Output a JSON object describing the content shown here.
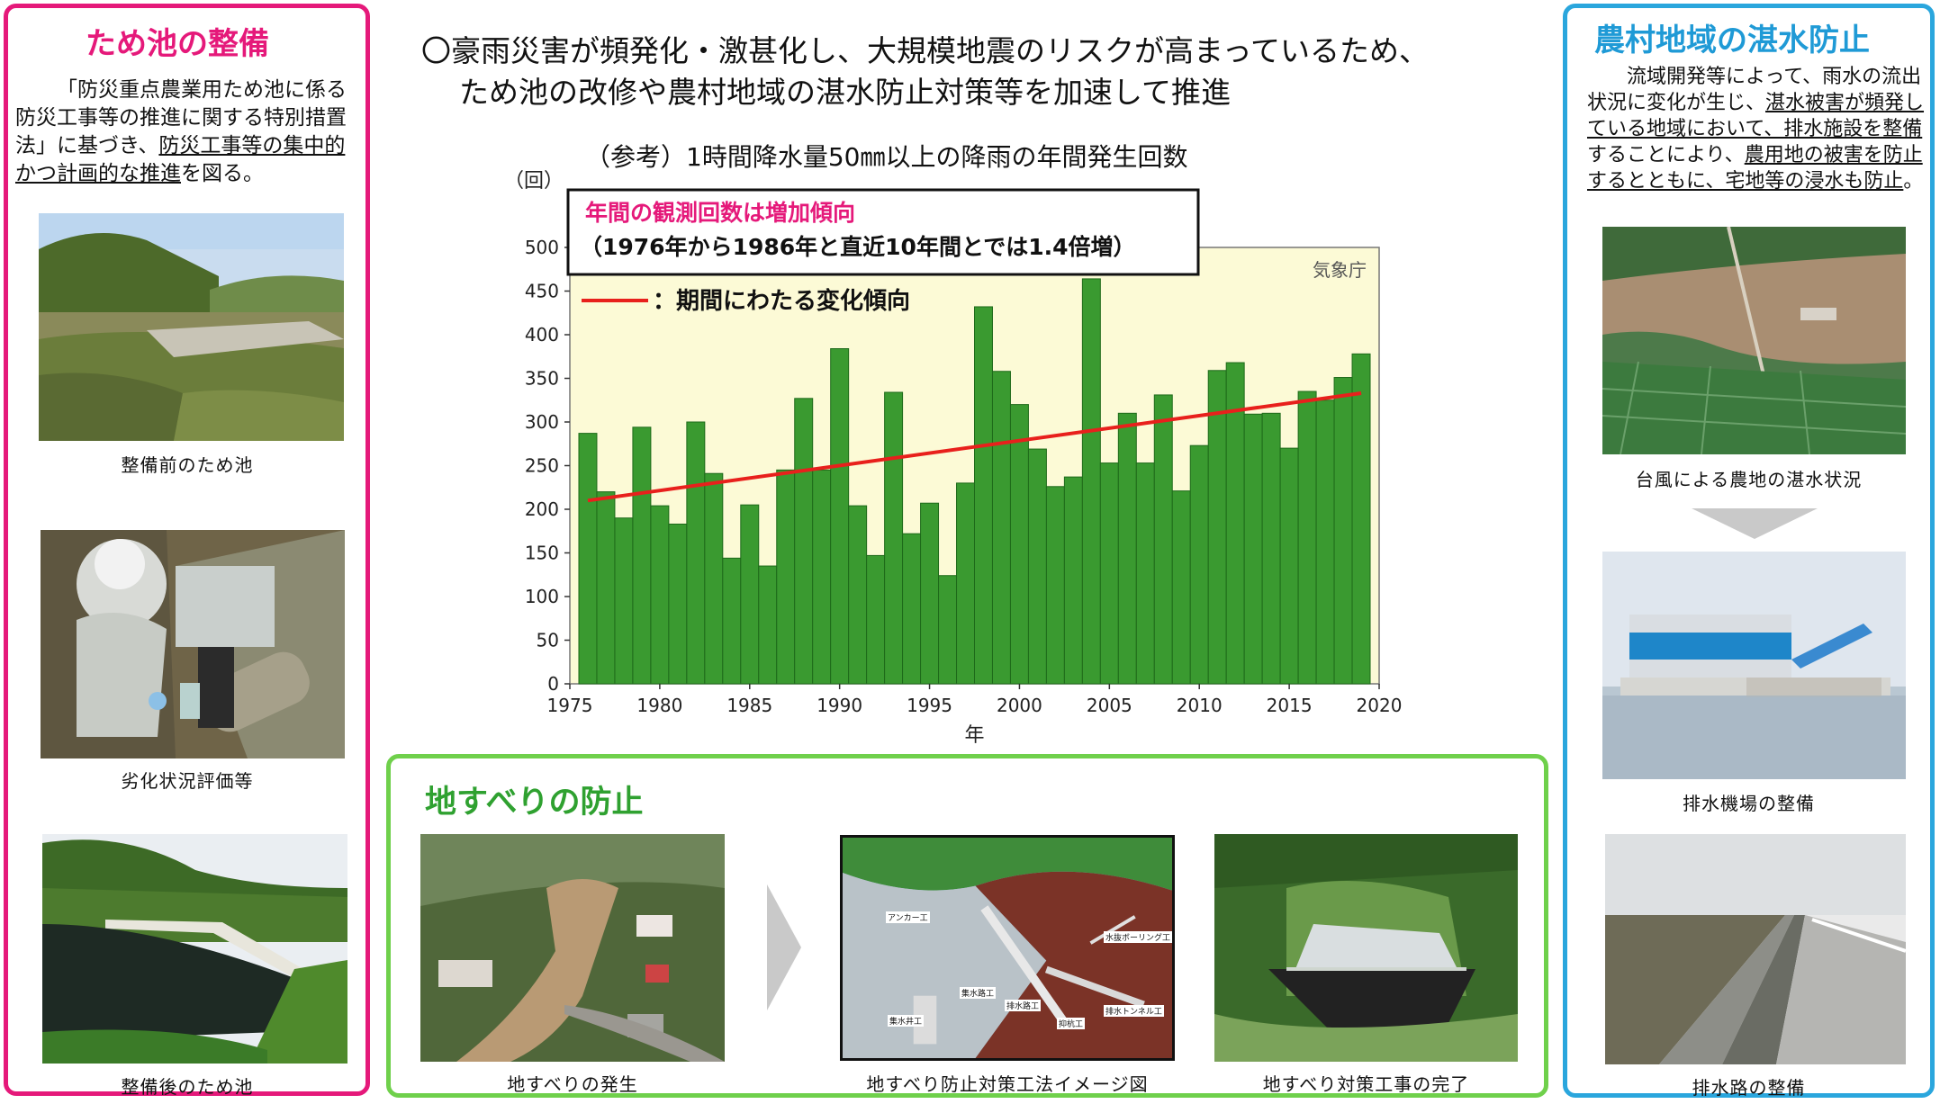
{
  "left_panel": {
    "title": "ため池の整備",
    "body": {
      "t1": "「防災重点農業用ため池に係る防災工事等の推進に関する特別措置法」に基づき、",
      "t2": "防災工事等の集中的かつ計画的な推進",
      "t3": "を図る。"
    },
    "captions": [
      "整備前のため池",
      "劣化状況評価等",
      "整備後のため池"
    ]
  },
  "center": {
    "headline_line1": "〇豪雨災害が頻発化・激甚化し、大規模地震のリスクが高まっているため、",
    "headline_line2": "ため池の改修や農村地域の湛水防止対策等を加速して推進",
    "chart_title": "（参考）1時間降水量50㎜以上の降雨の年間発生回数"
  },
  "chart_data": {
    "type": "bar",
    "ylabel": "（回）",
    "xlabel": "年",
    "source": "気象庁",
    "ylim": [
      0,
      500
    ],
    "yticks": [
      0,
      50,
      100,
      150,
      200,
      250,
      300,
      350,
      400,
      450,
      500
    ],
    "xlim": [
      1975,
      2020
    ],
    "xticks": [
      1975,
      1980,
      1985,
      1990,
      1995,
      2000,
      2005,
      2010,
      2015,
      2020
    ],
    "grid": false,
    "bar_color": "#3a9a30",
    "trend_color": "#e8201c",
    "callout_line1": "年間の観測回数は増加傾向",
    "callout_line2": "（1976年から1986年と直近10年間とでは1.4倍増）",
    "legend_label": "：期間にわたる変化傾向",
    "x": [
      1976,
      1977,
      1978,
      1979,
      1980,
      1981,
      1982,
      1983,
      1984,
      1985,
      1986,
      1987,
      1988,
      1989,
      1990,
      1991,
      1992,
      1993,
      1994,
      1995,
      1996,
      1997,
      1998,
      1999,
      2000,
      2001,
      2002,
      2003,
      2004,
      2005,
      2006,
      2007,
      2008,
      2009,
      2010,
      2011,
      2012,
      2013,
      2014,
      2015,
      2016,
      2017,
      2018,
      2019
    ],
    "values": [
      287,
      220,
      190,
      294,
      204,
      183,
      300,
      241,
      144,
      205,
      135,
      245,
      327,
      245,
      384,
      204,
      147,
      334,
      172,
      207,
      124,
      230,
      432,
      358,
      320,
      269,
      226,
      237,
      464,
      253,
      310,
      253,
      331,
      221,
      273,
      359,
      368,
      309,
      310,
      270,
      335,
      325,
      351,
      378
    ],
    "trend": {
      "x": [
        1976,
        2019
      ],
      "y": [
        210,
        333
      ]
    }
  },
  "bottom_panel": {
    "title": "地すべりの防止",
    "captions": [
      "地すべりの発生",
      "地すべり防止対策工法イメージ図",
      "地すべり対策工事の完了"
    ],
    "diagram_labels": [
      "アンカー工",
      "水抜ボーリング工",
      "集水路工",
      "集水井工",
      "排水路工",
      "排水トンネル工",
      "抑杭工"
    ]
  },
  "right_panel": {
    "title": "農村地域の湛水防止",
    "body": {
      "t1": "流域開発等によって、雨水の流出状況に変化が生じ、",
      "t2": "湛水被害が頻発している地域において、排水施設を整備",
      "t3": "することにより、",
      "t4": "農用地の被害を防止するとともに、宅地等の浸水も防止",
      "t5": "。"
    },
    "captions": [
      "台風による農地の湛水状況",
      "排水機場の整備",
      "排水路の整備"
    ]
  }
}
